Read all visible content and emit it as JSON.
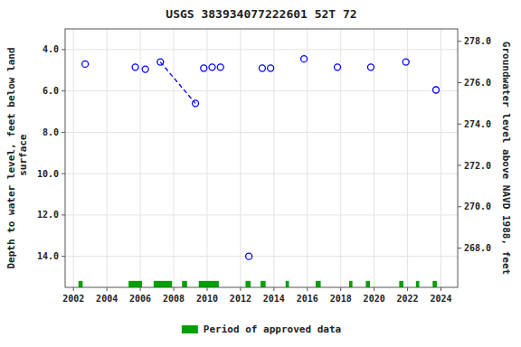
{
  "chart_data": {
    "type": "scatter",
    "title": "USGS 383934077222601 52T 72",
    "ylabel": "Depth to water level, feet below land\n surface",
    "y2label": "Groundwater level above NAVD 1988, feet",
    "xlim": [
      2001.5,
      2025.0
    ],
    "xticks": [
      2002,
      2004,
      2006,
      2008,
      2010,
      2012,
      2014,
      2016,
      2018,
      2020,
      2022,
      2024
    ],
    "ylim": [
      15.5,
      3.0
    ],
    "yticks": [
      {
        "value": 4.0,
        "label": "4.0"
      },
      {
        "value": 6.0,
        "label": "6.0"
      },
      {
        "value": 8.0,
        "label": "8.0"
      },
      {
        "value": 10.0,
        "label": "10.0"
      },
      {
        "value": 12.0,
        "label": "12.0"
      },
      {
        "value": 14.0,
        "label": "14.0"
      }
    ],
    "y2lim": [
      266.1,
      278.6
    ],
    "y2ticks": [
      {
        "value": 278.0,
        "label": "278.0"
      },
      {
        "value": 276.0,
        "label": "276.0"
      },
      {
        "value": 274.0,
        "label": "274.0"
      },
      {
        "value": 272.0,
        "label": "272.0"
      },
      {
        "value": 270.0,
        "label": "270.0"
      },
      {
        "value": 268.0,
        "label": "268.0"
      }
    ],
    "grid": true,
    "legend": "bottom",
    "series": [
      {
        "type": "line",
        "line_style": "dashed",
        "color": "#0000ff",
        "x": [
          2007.2,
          2009.3
        ],
        "values": [
          4.6,
          6.6
        ]
      },
      {
        "type": "scatter",
        "marker": "circle",
        "color": "#0000ff",
        "x": [
          2002.7,
          2005.7,
          2006.3,
          2007.2,
          2009.3,
          2009.8,
          2010.3,
          2010.8,
          2013.3,
          2013.8,
          2015.8,
          2017.8,
          2019.8,
          2021.9,
          2023.7
        ],
        "values": [
          4.7,
          4.85,
          4.95,
          4.6,
          6.6,
          4.9,
          4.85,
          4.85,
          4.9,
          4.9,
          4.45,
          4.85,
          4.85,
          4.6,
          5.95
        ]
      },
      {
        "type": "scatter",
        "marker": "circle",
        "color": "#0000ff",
        "x": [
          2012.5
        ],
        "values": [
          14.0
        ]
      },
      {
        "type": "span",
        "name": "Period of approved data",
        "color": "#00a000",
        "periods": [
          [
            2002.3,
            2002.55
          ],
          [
            2005.3,
            2006.1
          ],
          [
            2006.8,
            2007.9
          ],
          [
            2008.5,
            2008.8
          ],
          [
            2009.5,
            2010.7
          ],
          [
            2012.3,
            2012.6
          ],
          [
            2013.2,
            2013.5
          ],
          [
            2014.7,
            2014.9
          ],
          [
            2016.5,
            2016.8
          ],
          [
            2018.5,
            2018.7
          ],
          [
            2019.5,
            2019.75
          ],
          [
            2021.5,
            2021.75
          ],
          [
            2022.5,
            2022.7
          ],
          [
            2023.5,
            2023.75
          ]
        ]
      }
    ]
  }
}
